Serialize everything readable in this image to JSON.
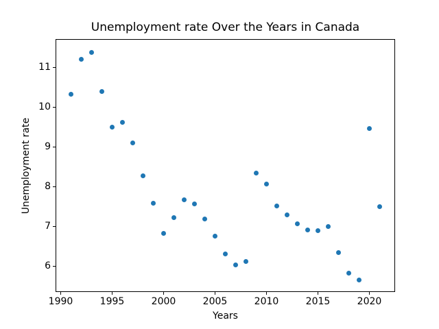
{
  "chart_data": {
    "type": "scatter",
    "title": "Unemployment rate Over the Years in Canada",
    "xlabel": "Years",
    "ylabel": "Unemployment rate",
    "x": [
      1991,
      1992,
      1993,
      1994,
      1995,
      1996,
      1997,
      1998,
      1999,
      2000,
      2001,
      2002,
      2003,
      2004,
      2005,
      2006,
      2007,
      2008,
      2009,
      2010,
      2011,
      2012,
      2013,
      2014,
      2015,
      2016,
      2017,
      2018,
      2019,
      2020,
      2021
    ],
    "y": [
      10.32,
      11.21,
      11.38,
      10.39,
      9.49,
      9.61,
      9.1,
      8.28,
      7.58,
      6.82,
      7.22,
      7.66,
      7.57,
      7.18,
      6.75,
      6.3,
      6.03,
      6.12,
      8.34,
      8.06,
      7.51,
      7.29,
      7.07,
      6.91,
      6.9,
      7.0,
      6.34,
      5.83,
      5.66,
      9.46,
      7.5
    ],
    "xlim": [
      1989.5,
      2022.5
    ],
    "ylim": [
      5.35,
      11.71
    ],
    "xticks": [
      1990,
      1995,
      2000,
      2005,
      2010,
      2015,
      2020
    ],
    "yticks": [
      6,
      7,
      8,
      9,
      10,
      11
    ],
    "marker_color": "#1f77b4",
    "background_color": "#ffffff",
    "grid": false,
    "legend": false
  }
}
